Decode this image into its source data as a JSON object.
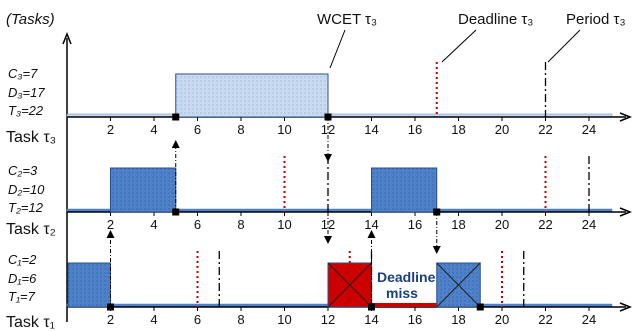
{
  "y_axis_label": "(Tasks)",
  "x_ticks": [
    "2",
    "4",
    "6",
    "8",
    "10",
    "12",
    "14",
    "16",
    "18",
    "20",
    "22",
    "24"
  ],
  "callouts": {
    "wcet": "WCET τ₃",
    "deadline": "Deadline τ₃",
    "period": "Period τ₃"
  },
  "deadline_miss": [
    "Deadline",
    "miss"
  ],
  "tasks": [
    {
      "label": "Task τ₃",
      "params": [
        "C₃=7",
        "D₃=17",
        "T₃=22"
      ],
      "C": 7,
      "D": 17,
      "T": 22,
      "executions": [
        {
          "start": 5,
          "end": 12
        }
      ],
      "deadlines": [
        17
      ],
      "periods": [
        22
      ],
      "events": [
        5,
        12
      ]
    },
    {
      "label": "Task τ₂",
      "params": [
        "C₂=3",
        "D₂=10",
        "T₂=12"
      ],
      "C": 3,
      "D": 10,
      "T": 12,
      "executions": [
        {
          "start": 2,
          "end": 5
        },
        {
          "start": 14,
          "end": 17
        }
      ],
      "deadlines": [
        10,
        22
      ],
      "periods": [
        12,
        24
      ],
      "events": [
        5,
        17
      ]
    },
    {
      "label": "Task τ₁",
      "params": [
        "C₁=2",
        "D₁=6",
        "T₁=7"
      ],
      "C": 2,
      "D": 6,
      "T": 7,
      "executions": [
        {
          "start": 0,
          "end": 2,
          "state": "ok"
        },
        {
          "start": 12,
          "end": 14,
          "state": "missed"
        },
        {
          "start": 17,
          "end": 19,
          "state": "cancelled"
        }
      ],
      "deadlines": [
        6,
        13,
        20
      ],
      "periods": [
        7,
        14,
        21
      ],
      "events": [
        2,
        14,
        19
      ]
    }
  ],
  "colors": {
    "task3_fill": "#c9d9ef",
    "task_fill": "#4f81c9",
    "missed_fill": "#cc0000",
    "deadline_line": "#c00000",
    "period_line": "#000000",
    "axis": "#000000"
  }
}
